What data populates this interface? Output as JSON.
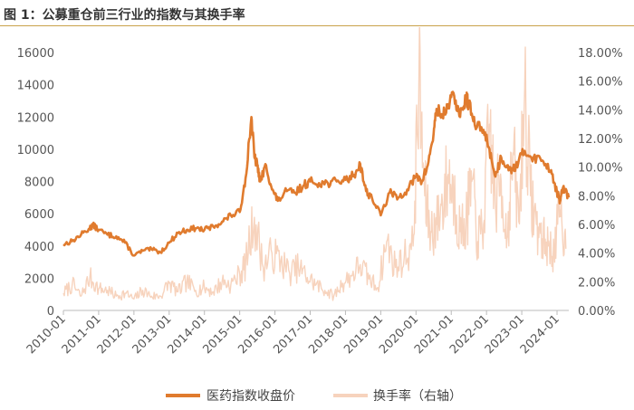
{
  "figure_title": "图 1：公募重仓前三行业的指数与其换手率",
  "chart_data": {
    "type": "line",
    "title": "图 1：公募重仓前三行业的指数与其换手率",
    "x_tick_labels": [
      "2010-01",
      "2011-01",
      "2012-01",
      "2013-01",
      "2014-01",
      "2015-01",
      "2016-01",
      "2017-01",
      "2018-01",
      "2019-01",
      "2020-01",
      "2021-01",
      "2022-01",
      "2023-01",
      "2024-01"
    ],
    "y_left": {
      "ticks": [
        "0",
        "2000",
        "4000",
        "6000",
        "8000",
        "10000",
        "12000",
        "14000",
        "16000"
      ],
      "range": [
        0,
        16000
      ]
    },
    "y_right": {
      "ticks": [
        "0.00%",
        "2.00%",
        "4.00%",
        "6.00%",
        "8.00%",
        "10.00%",
        "12.00%",
        "14.00%",
        "16.00%",
        "18.00%"
      ],
      "range": [
        0,
        18
      ]
    },
    "x_range": [
      "2010-01",
      "2024-05"
    ],
    "legend_position": "bottom",
    "grid": false,
    "colors": {
      "index": "#e07b2e",
      "turnover": "#f7d3bd"
    },
    "series": [
      {
        "name": "医药指数收盘价",
        "axis": "left",
        "x": [
          "2010-01",
          "2010-04",
          "2010-07",
          "2010-10",
          "2010-11",
          "2011-01",
          "2011-04",
          "2011-07",
          "2011-10",
          "2012-01",
          "2012-04",
          "2012-07",
          "2012-10",
          "2013-01",
          "2013-04",
          "2013-07",
          "2013-10",
          "2014-01",
          "2014-04",
          "2014-07",
          "2014-10",
          "2015-01",
          "2015-03",
          "2015-05",
          "2015-06",
          "2015-07",
          "2015-08",
          "2015-10",
          "2015-12",
          "2016-02",
          "2016-05",
          "2016-08",
          "2016-11",
          "2017-01",
          "2017-04",
          "2017-07",
          "2017-10",
          "2018-01",
          "2018-04",
          "2018-06",
          "2018-08",
          "2018-10",
          "2019-01",
          "2019-04",
          "2019-07",
          "2019-10",
          "2020-01",
          "2020-03",
          "2020-05",
          "2020-07",
          "2020-08",
          "2020-10",
          "2020-12",
          "2021-02",
          "2021-04",
          "2021-06",
          "2021-07",
          "2021-09",
          "2021-12",
          "2022-02",
          "2022-04",
          "2022-06",
          "2022-08",
          "2022-10",
          "2022-12",
          "2023-02",
          "2023-05",
          "2023-08",
          "2023-11",
          "2024-01",
          "2024-02",
          "2024-03",
          "2024-05"
        ],
        "values": [
          4100,
          4300,
          4700,
          5100,
          5300,
          5000,
          4700,
          4600,
          4200,
          3400,
          3700,
          3800,
          3600,
          4200,
          4800,
          5000,
          5100,
          5000,
          5200,
          5500,
          5900,
          6100,
          8200,
          12000,
          9500,
          9000,
          8000,
          9000,
          7500,
          6800,
          7400,
          7300,
          7800,
          8000,
          7900,
          7900,
          8000,
          8100,
          8400,
          9100,
          7400,
          7000,
          5900,
          7300,
          7000,
          7500,
          8300,
          8000,
          9000,
          11000,
          12500,
          12000,
          12800,
          13300,
          12000,
          13200,
          12800,
          11500,
          11200,
          10000,
          8300,
          9500,
          9000,
          8700,
          9300,
          9900,
          9500,
          9300,
          8700,
          7300,
          6800,
          7600,
          7000
        ]
      },
      {
        "name": "换手率（右轴）",
        "axis": "right",
        "x": [
          "2010-01",
          "2010-04",
          "2010-07",
          "2010-10",
          "2011-01",
          "2011-04",
          "2011-07",
          "2011-10",
          "2012-01",
          "2012-04",
          "2012-07",
          "2012-10",
          "2013-01",
          "2013-04",
          "2013-07",
          "2013-10",
          "2014-01",
          "2014-04",
          "2014-07",
          "2014-10",
          "2015-01",
          "2015-03",
          "2015-06",
          "2015-09",
          "2015-12",
          "2016-03",
          "2016-06",
          "2016-09",
          "2016-12",
          "2017-03",
          "2017-06",
          "2017-09",
          "2017-12",
          "2018-03",
          "2018-06",
          "2018-09",
          "2018-12",
          "2019-03",
          "2019-06",
          "2019-09",
          "2019-12",
          "2020-02",
          "2020-04",
          "2020-06",
          "2020-08",
          "2020-10",
          "2020-12",
          "2021-02",
          "2021-04",
          "2021-06",
          "2021-08",
          "2021-10",
          "2021-12",
          "2022-02",
          "2022-04",
          "2022-06",
          "2022-08",
          "2022-10",
          "2022-12",
          "2023-02",
          "2023-04",
          "2023-06",
          "2023-08",
          "2023-10",
          "2023-12",
          "2024-02",
          "2024-04"
        ],
        "values": [
          1.2,
          1.8,
          1.0,
          2.3,
          1.5,
          1.4,
          1.0,
          1.2,
          0.8,
          1.4,
          1.0,
          1.0,
          1.9,
          1.3,
          2.0,
          1.4,
          1.6,
          1.3,
          2.0,
          1.8,
          2.5,
          3.2,
          6.5,
          3.0,
          4.0,
          3.5,
          2.6,
          3.0,
          2.3,
          1.8,
          1.4,
          1.0,
          1.9,
          2.4,
          3.2,
          2.2,
          1.6,
          4.8,
          3.0,
          3.7,
          4.5,
          16.0,
          8.0,
          5.5,
          6.0,
          7.5,
          9.5,
          8.0,
          5.5,
          6.0,
          9.0,
          4.8,
          6.0,
          13.0,
          7.5,
          9.0,
          5.0,
          11.0,
          6.2,
          15.5,
          8.0,
          6.0,
          5.0,
          4.5,
          4.0,
          7.0,
          4.3
        ]
      }
    ]
  }
}
